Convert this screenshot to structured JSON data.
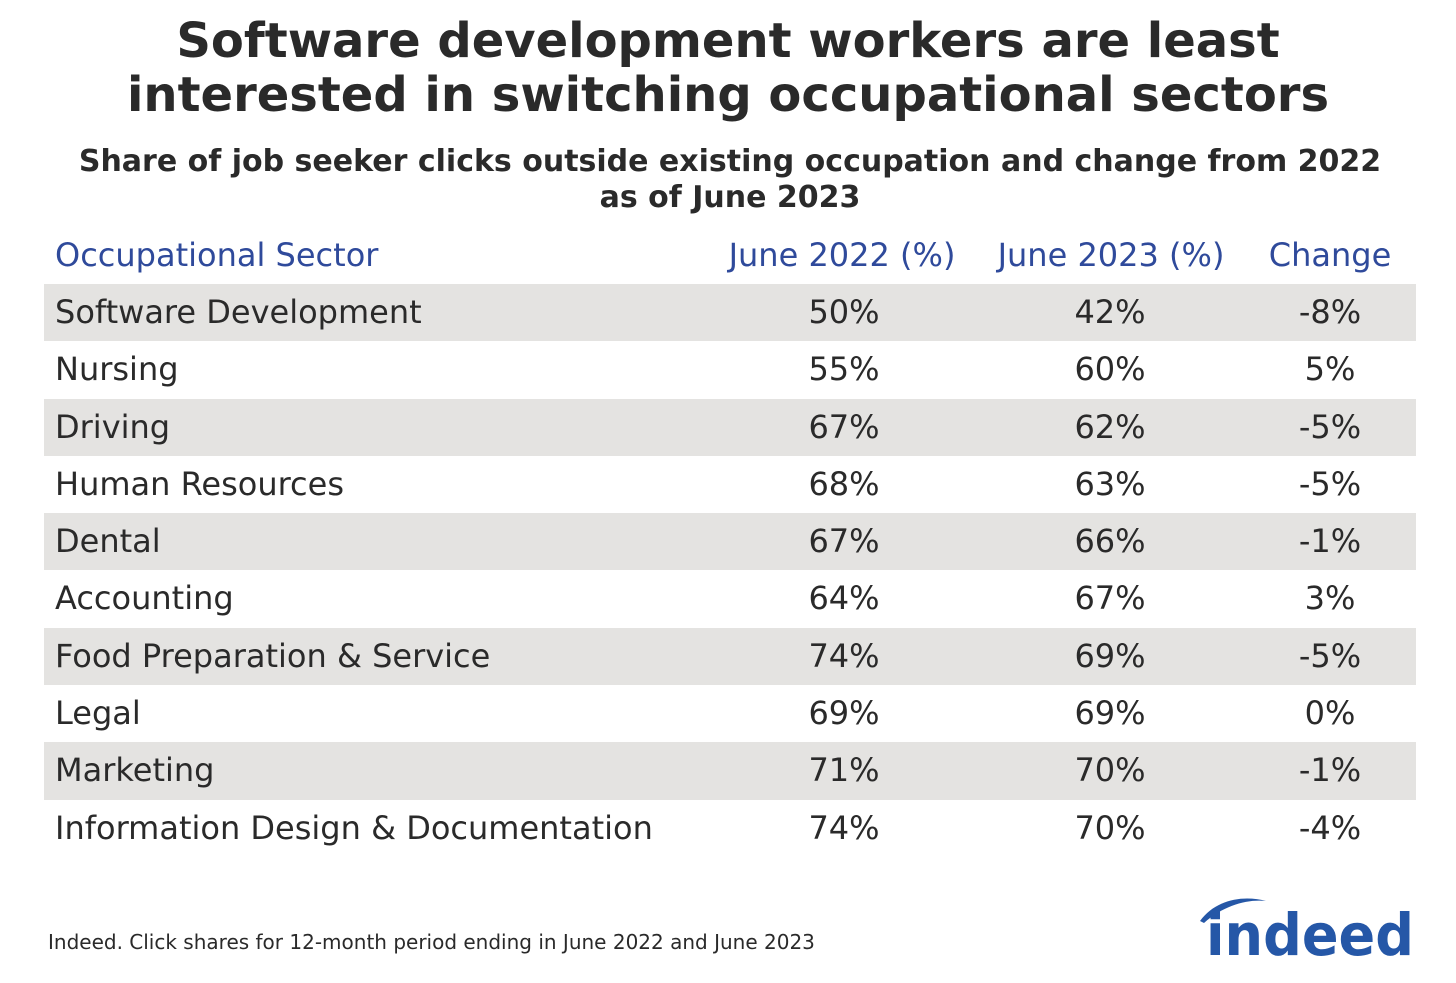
{
  "chart_data": {
    "type": "table",
    "title_lines": [
      "Software development workers are least",
      "interested in switching occupational sectors"
    ],
    "subtitle_lines": [
      "Share of job seeker clicks outside existing occupation and change from 2022",
      "as of June 2023"
    ],
    "columns": [
      "Occupational Sector",
      "June 2022 (%)",
      "June 2023 (%)",
      "Change"
    ],
    "rows": [
      [
        "Software Development",
        "50%",
        "42%",
        "-8%"
      ],
      [
        "Nursing",
        "55%",
        "60%",
        "5%"
      ],
      [
        "Driving",
        "67%",
        "62%",
        "-5%"
      ],
      [
        "Human Resources",
        "68%",
        "63%",
        "-5%"
      ],
      [
        "Dental",
        "67%",
        "66%",
        "-1%"
      ],
      [
        "Accounting",
        "64%",
        "67%",
        "3%"
      ],
      [
        "Food Preparation & Service",
        "74%",
        "69%",
        "-5%"
      ],
      [
        "Legal",
        "69%",
        "69%",
        "0%"
      ],
      [
        "Marketing",
        "71%",
        "70%",
        "-1%"
      ],
      [
        "Information Design & Documentation",
        "74%",
        "70%",
        "-4%"
      ]
    ],
    "source": "Indeed. Click shares for 12-month period ending in June 2022 and June 2023"
  },
  "logo": {
    "text": "indeed",
    "color": "#2557a7",
    "icon": "indeed-logo"
  },
  "colors": {
    "header_text": "#2f4a9b",
    "row_shade": "#e4e3e1",
    "body_text": "#2a2a2a"
  }
}
